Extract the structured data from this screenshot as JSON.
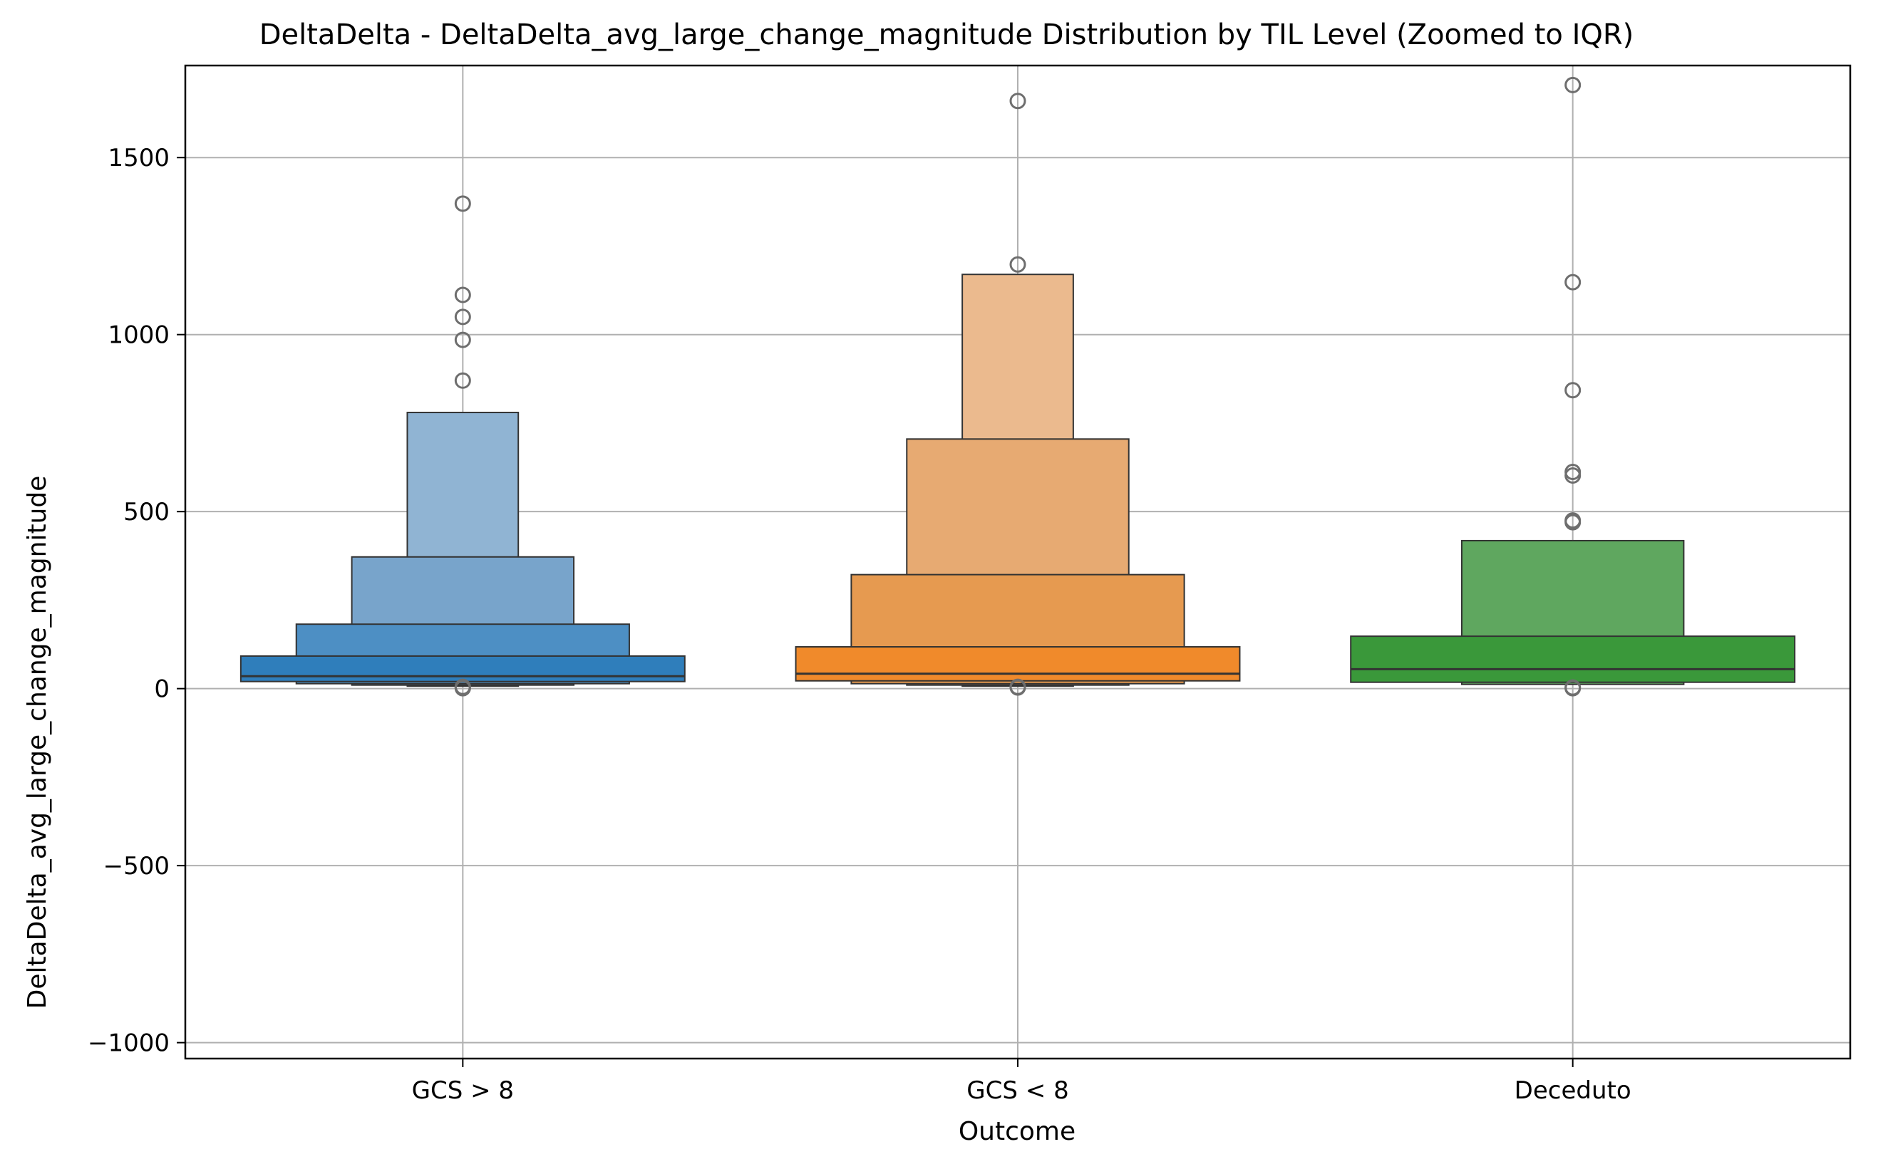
{
  "chart_data": {
    "type": "boxenplot",
    "title": "DeltaDelta - DeltaDelta_avg_large_change_magnitude Distribution by TIL Level (Zoomed to IQR)",
    "xlabel": "Outcome",
    "ylabel": "DeltaDelta_avg_large_change_magnitude",
    "ylim": [
      -1045,
      1760
    ],
    "yticks": [
      -1000,
      -500,
      0,
      500,
      1000,
      1500
    ],
    "ytick_labels": [
      "−1000",
      "−500",
      "0",
      "500",
      "1000",
      "1500"
    ],
    "grid": true,
    "categories": [
      "GCS > 8",
      "GCS < 8",
      "Deceduto"
    ],
    "series": [
      {
        "category": "GCS > 8",
        "base_color": "#1f77b4",
        "median": 35,
        "boxes": [
          {
            "lo": 20,
            "hi": 92,
            "color": "#2f7ebb"
          },
          {
            "lo": 14,
            "hi": 182,
            "color": "#4d8fc4"
          },
          {
            "lo": 10,
            "hi": 372,
            "color": "#78a4cb"
          },
          {
            "lo": 7,
            "hi": 780,
            "color": "#90b4d3"
          }
        ],
        "outliers": [
          1370,
          1112,
          1050,
          985,
          870,
          5,
          3,
          1
        ]
      },
      {
        "category": "GCS < 8",
        "base_color": "#ff7f0e",
        "median": 42,
        "boxes": [
          {
            "lo": 22,
            "hi": 118,
            "color": "#f08a2b"
          },
          {
            "lo": 14,
            "hi": 322,
            "color": "#e69a50"
          },
          {
            "lo": 10,
            "hi": 705,
            "color": "#e7aa72"
          },
          {
            "lo": 7,
            "hi": 1170,
            "color": "#ebba8e"
          }
        ],
        "outliers": [
          1660,
          1198,
          5,
          3
        ]
      },
      {
        "category": "Deceduto",
        "base_color": "#2ca02c",
        "median": 55,
        "boxes": [
          {
            "lo": 18,
            "hi": 148,
            "color": "#3a983a"
          },
          {
            "lo": 12,
            "hi": 418,
            "color": "#5fa75f"
          }
        ],
        "outliers": [
          1705,
          1148,
          843,
          612,
          602,
          475,
          470,
          3,
          1
        ]
      }
    ]
  }
}
